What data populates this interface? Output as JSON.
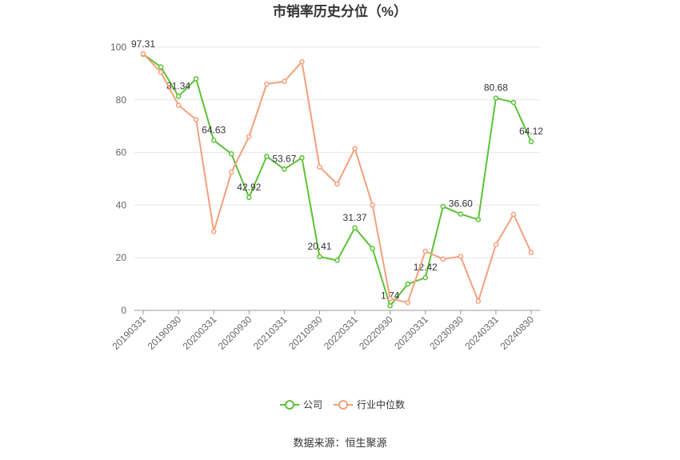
{
  "chart_data": {
    "type": "line",
    "title": "市销率历史分位（%）",
    "source": "数据来源：恒生聚源",
    "categories": [
      "20190331",
      null,
      "20190930",
      null,
      "20200331",
      null,
      "20200930",
      null,
      "20210331",
      null,
      "20210930",
      null,
      "20220331",
      null,
      "20220930",
      null,
      "20230331",
      null,
      "20230930",
      null,
      "20240331",
      null,
      "20240830"
    ],
    "series": [
      {
        "name": "公司",
        "color": "#5bc236",
        "values": [
          97.31,
          92.5,
          81.34,
          88,
          64.63,
          59.5,
          42.92,
          58.5,
          53.67,
          58,
          20.41,
          19,
          31.37,
          23.5,
          1.74,
          10,
          12.42,
          39.5,
          36.6,
          34.5,
          80.68,
          79,
          64.12
        ],
        "value_labels": [
          "97.31",
          null,
          "81.34",
          null,
          "64.63",
          null,
          "42.92",
          null,
          "53.67",
          null,
          "20.41",
          null,
          "31.37",
          null,
          "1.74",
          null,
          "12.42",
          null,
          "36.60",
          null,
          "80.68",
          null,
          "64.12"
        ]
      },
      {
        "name": "行业中位数",
        "color": "#f4a07c",
        "values": [
          97.5,
          90.5,
          78,
          72.5,
          30,
          52.5,
          66,
          86,
          87,
          94.5,
          54.5,
          48,
          61.5,
          40,
          4.5,
          3,
          22.5,
          19.5,
          20.5,
          3.5,
          25,
          36.5,
          22
        ]
      }
    ],
    "ylim": [
      0,
      100
    ],
    "yticks": [
      0,
      20,
      40,
      60,
      80,
      100
    ],
    "grid": true,
    "legend": "bottom"
  }
}
